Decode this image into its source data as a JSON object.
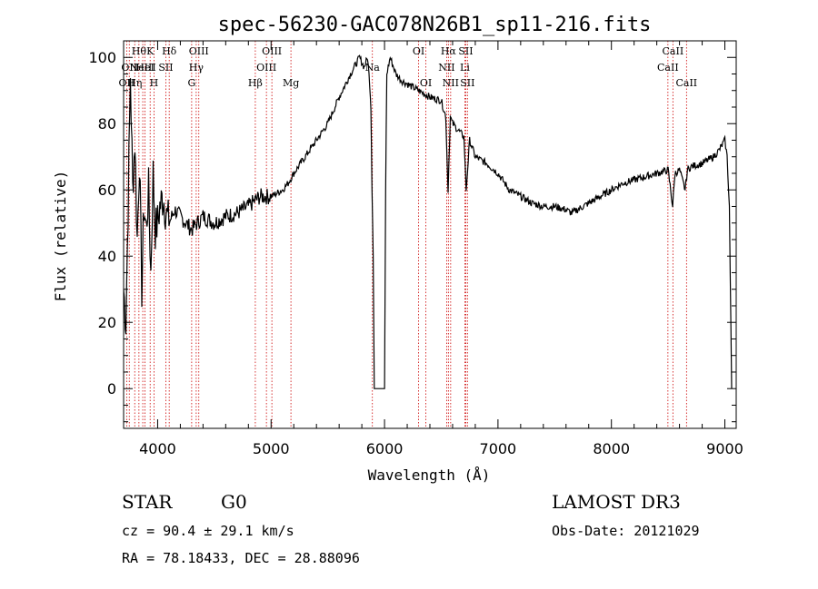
{
  "chart_data": {
    "type": "line",
    "title": "spec-56230-GAC078N26B1_sp11-216.fits",
    "xlabel": "Wavelength (Å)",
    "ylabel": "Flux (relative)",
    "xlim": [
      3700,
      9100
    ],
    "ylim": [
      -12,
      105
    ],
    "xticks": [
      4000,
      5000,
      6000,
      7000,
      8000,
      9000
    ],
    "yticks": [
      0,
      20,
      40,
      60,
      80,
      100
    ],
    "series": [
      {
        "name": "flux",
        "x": [
          3700,
          3720,
          3740,
          3760,
          3780,
          3800,
          3820,
          3840,
          3860,
          3880,
          3900,
          3920,
          3940,
          3960,
          3980,
          4000,
          4020,
          4050,
          4080,
          4100,
          4150,
          4200,
          4250,
          4300,
          4350,
          4400,
          4450,
          4500,
          4600,
          4700,
          4800,
          4900,
          5000,
          5100,
          5150,
          5200,
          5300,
          5400,
          5500,
          5600,
          5700,
          5780,
          5820,
          5850,
          5870,
          5880,
          5890,
          5900,
          5910,
          5920,
          5930,
          6000,
          6010,
          6020,
          6050,
          6080,
          6100,
          6150,
          6200,
          6300,
          6400,
          6500,
          6540,
          6560,
          6580,
          6600,
          6650,
          6700,
          6720,
          6750,
          6800,
          6900,
          7000,
          7100,
          7200,
          7300,
          7400,
          7500,
          7600,
          7650,
          7700,
          7800,
          7900,
          8000,
          8100,
          8200,
          8300,
          8400,
          8500,
          8540,
          8560,
          8600,
          8650,
          8670,
          8700,
          8800,
          8900,
          8950,
          9000,
          9020,
          9040,
          9060
        ],
        "y": [
          30,
          20,
          55,
          95,
          60,
          75,
          45,
          70,
          30,
          55,
          48,
          60,
          35,
          65,
          48,
          50,
          55,
          58,
          52,
          50,
          54,
          52,
          50,
          48,
          50,
          52,
          51,
          50,
          52,
          53,
          55,
          58,
          58,
          60,
          62,
          65,
          70,
          75,
          80,
          88,
          95,
          100,
          97,
          100,
          92,
          85,
          60,
          40,
          0,
          0,
          0,
          0,
          60,
          95,
          100,
          97,
          95,
          93,
          92,
          90,
          88,
          87,
          82,
          60,
          82,
          80,
          78,
          76,
          60,
          75,
          70,
          68,
          65,
          60,
          58,
          56,
          55,
          55,
          54,
          53,
          54,
          56,
          58,
          60,
          62,
          63,
          64,
          65,
          66,
          55,
          65,
          66,
          60,
          66,
          67,
          68,
          70,
          72,
          75,
          70,
          55,
          0
        ]
      }
    ],
    "reference_lines": [
      {
        "wavelength": 3727,
        "label": "OII",
        "row": 3
      },
      {
        "wavelength": 3750,
        "label": "OII",
        "row": 2
      },
      {
        "wavelength": 3798,
        "label": "Hη",
        "row": 3
      },
      {
        "wavelength": 3835,
        "label": "Hθ",
        "row": 1
      },
      {
        "wavelength": 3869,
        "label": "NeIII",
        "row": 2
      },
      {
        "wavelength": 3889,
        "label": "HeI",
        "row": 2
      },
      {
        "wavelength": 3934,
        "label": "K",
        "row": 1
      },
      {
        "wavelength": 3968,
        "label": "H",
        "row": 3
      },
      {
        "wavelength": 4072,
        "label": "SII",
        "row": 2
      },
      {
        "wavelength": 4102,
        "label": "Hδ",
        "row": 1
      },
      {
        "wavelength": 4300,
        "label": "G",
        "row": 3
      },
      {
        "wavelength": 4340,
        "label": "Hγ",
        "row": 2
      },
      {
        "wavelength": 4363,
        "label": "OIII",
        "row": 1
      },
      {
        "wavelength": 4861,
        "label": "Hβ",
        "row": 3
      },
      {
        "wavelength": 4959,
        "label": "OIII",
        "row": 2
      },
      {
        "wavelength": 5007,
        "label": "OIII",
        "row": 1
      },
      {
        "wavelength": 5175,
        "label": "Mg",
        "row": 3
      },
      {
        "wavelength": 5893,
        "label": "Na",
        "row": 2
      },
      {
        "wavelength": 6300,
        "label": "OI",
        "row": 1
      },
      {
        "wavelength": 6364,
        "label": "OI",
        "row": 3
      },
      {
        "wavelength": 6548,
        "label": "NII",
        "row": 2
      },
      {
        "wavelength": 6563,
        "label": "Hα",
        "row": 1
      },
      {
        "wavelength": 6583,
        "label": "NII",
        "row": 3
      },
      {
        "wavelength": 6708,
        "label": "Li",
        "row": 2
      },
      {
        "wavelength": 6716,
        "label": "SII",
        "row": 1
      },
      {
        "wavelength": 6731,
        "label": "SII",
        "row": 3
      },
      {
        "wavelength": 8498,
        "label": "CaII",
        "row": 2
      },
      {
        "wavelength": 8542,
        "label": "CaII",
        "row": 1
      },
      {
        "wavelength": 8662,
        "label": "CaII",
        "row": 3
      }
    ]
  },
  "info": {
    "object_class": "STAR",
    "subclass": "G0",
    "survey": "LAMOST DR3",
    "velocity": "cz =  90.4 ± 29.1 km/s",
    "obs_date": "Obs-Date: 20121029",
    "coordinates": "RA =  78.18433, DEC =  28.88096"
  },
  "colors": {
    "axis": "#000000",
    "flux_line": "#000000",
    "reference_line": "#cc0000"
  }
}
